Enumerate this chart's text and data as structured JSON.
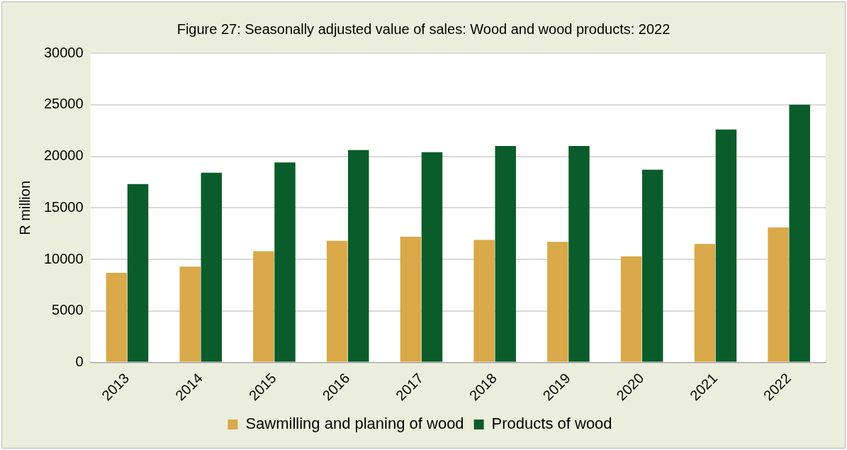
{
  "chart_data": {
    "type": "bar",
    "title": "Figure 27: Seasonally adjusted value of sales: Wood and wood products: 2022",
    "ylabel": "R million",
    "categories": [
      "2013",
      "2014",
      "2015",
      "2016",
      "2017",
      "2018",
      "2019",
      "2020",
      "2021",
      "2022"
    ],
    "series": [
      {
        "name": "Sawmilling and planing of wood",
        "color": "#d9a94a",
        "values": [
          8700,
          9300,
          10800,
          11800,
          12200,
          11900,
          11700,
          10300,
          11500,
          13100
        ]
      },
      {
        "name": "Products of wood",
        "color": "#0a5c2a",
        "values": [
          17300,
          18400,
          19400,
          20600,
          20400,
          21000,
          21000,
          18700,
          22600,
          25000
        ]
      }
    ],
    "ylim": [
      0,
      30000
    ],
    "yticks": [
      0,
      5000,
      10000,
      15000,
      20000,
      25000,
      30000
    ],
    "grid": "y",
    "legend": "bottom"
  }
}
